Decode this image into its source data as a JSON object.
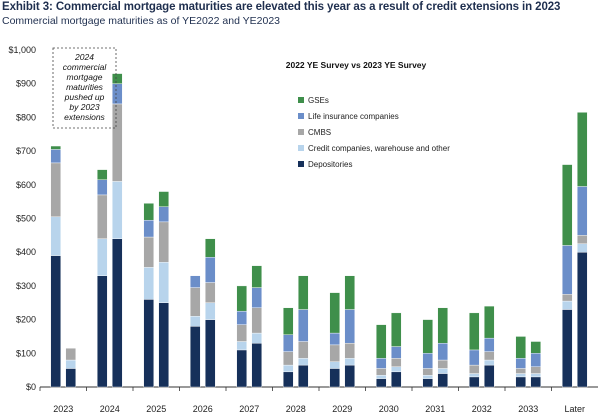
{
  "header": {
    "title": "Exhibit 3: Commercial mortgage maturities are elevated this year as a result of credit extensions in 2023",
    "subtitle": "Commercial mortgage maturities as of YE2022 and YE2023"
  },
  "chart_data": {
    "type": "bar",
    "stacked": true,
    "title": "2022 YE  Survey vs 2023 YE  Survey",
    "annotation": [
      "2024",
      "commercial",
      "mortgage",
      "maturities",
      "pushed up",
      "by 2023",
      "extensions"
    ],
    "categories": [
      "2023",
      "2024",
      "2025",
      "2026",
      "2027",
      "2028",
      "2029",
      "2030",
      "2031",
      "2032",
      "2033",
      "Later"
    ],
    "bars_per_category": [
      "2022 YE Survey",
      "2023 YE Survey"
    ],
    "ylim": [
      0,
      1000
    ],
    "yticks": [
      0,
      100,
      200,
      300,
      400,
      500,
      600,
      700,
      800,
      900,
      1000
    ],
    "ytick_labels": [
      "$0",
      "$100",
      "$200",
      "$300",
      "$400",
      "$500",
      "$600",
      "$700",
      "$800",
      "$900",
      "$1,000"
    ],
    "legend_position": "upper-right",
    "grid": false,
    "series": [
      {
        "name": "Depositories",
        "color": "#16305a",
        "values_2022ye": [
          390,
          330,
          260,
          180,
          110,
          45,
          55,
          25,
          25,
          30,
          30,
          230
        ],
        "values_2023ye": [
          55,
          440,
          250,
          200,
          130,
          65,
          65,
          45,
          40,
          65,
          30,
          400
        ]
      },
      {
        "name": "Credit companies, warehouse and other",
        "color": "#b8d4ec",
        "values_2022ye": [
          115,
          110,
          95,
          30,
          25,
          20,
          20,
          10,
          10,
          10,
          10,
          25
        ],
        "values_2023ye": [
          25,
          170,
          120,
          50,
          30,
          20,
          20,
          15,
          15,
          15,
          10,
          25
        ]
      },
      {
        "name": "CMBS",
        "color": "#a7a7a7",
        "values_2022ye": [
          160,
          130,
          90,
          85,
          50,
          40,
          50,
          20,
          20,
          25,
          15,
          20
        ],
        "values_2023ye": [
          35,
          230,
          120,
          60,
          75,
          50,
          45,
          25,
          25,
          25,
          20,
          25
        ]
      },
      {
        "name": "Life insurance companies",
        "color": "#6b8ec9",
        "values_2022ye": [
          40,
          45,
          50,
          35,
          40,
          50,
          35,
          30,
          45,
          45,
          30,
          145
        ],
        "values_2023ye": [
          0,
          60,
          45,
          75,
          60,
          95,
          100,
          35,
          50,
          40,
          40,
          145
        ]
      },
      {
        "name": "GSEs",
        "color": "#3f8f4b",
        "values_2022ye": [
          10,
          30,
          50,
          0,
          75,
          80,
          120,
          100,
          100,
          110,
          65,
          240
        ],
        "values_2023ye": [
          0,
          30,
          45,
          55,
          65,
          100,
          100,
          100,
          105,
          95,
          35,
          220
        ]
      }
    ]
  }
}
